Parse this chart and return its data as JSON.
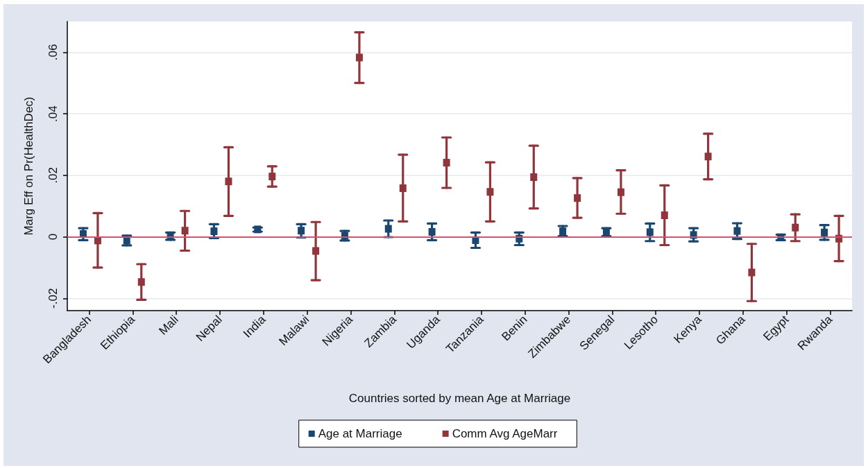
{
  "chart_data": {
    "type": "scatter",
    "xlabel": "Countries sorted by mean Age at Marriage",
    "ylabel": "Marg Eff on Pr(HealthDec)",
    "categories": [
      "Bangladesh",
      "Ethiopia",
      "Mali",
      "Nepal",
      "India",
      "Malawi",
      "Nigeria",
      "Zambia",
      "Uganda",
      "Tanzania",
      "Benin",
      "Zimbabwe",
      "Senegal",
      "Lesotho",
      "Kenya",
      "Ghana",
      "Egypt",
      "Rwanda"
    ],
    "series": [
      {
        "name": "Age at Marriage",
        "color": "#1a476f",
        "values": [
          0.0009,
          -0.0012,
          0.0002,
          0.0018,
          0.0024,
          0.002,
          0.0003,
          0.0026,
          0.0016,
          -0.0011,
          -0.0006,
          0.0018,
          0.0015,
          0.0015,
          0.0006,
          0.0019,
          -0.0002,
          0.0014
        ],
        "errors": [
          [
            -0.0011,
            0.0028
          ],
          [
            -0.0028,
            0.0004
          ],
          [
            -0.001,
            0.0014
          ],
          [
            -0.0004,
            0.0041
          ],
          [
            0.0017,
            0.003
          ],
          [
            -0.0002,
            0.0041
          ],
          [
            -0.0012,
            0.0019
          ],
          [
            -0.0001,
            0.0053
          ],
          [
            -0.0011,
            0.0043
          ],
          [
            -0.0036,
            0.0014
          ],
          [
            -0.0027,
            0.0014
          ],
          [
            0.0002,
            0.0035
          ],
          [
            0.0002,
            0.0028
          ],
          [
            -0.0014,
            0.0043
          ],
          [
            -0.0015,
            0.0028
          ],
          [
            -0.0007,
            0.0044
          ],
          [
            -0.0011,
            0.0007
          ],
          [
            -0.001,
            0.0038
          ]
        ]
      },
      {
        "name": "Comm Avg AgeMarr",
        "color": "#90353b",
        "values": [
          -0.0012,
          -0.0147,
          0.002,
          0.018,
          0.0196,
          -0.0046,
          0.0583,
          0.0158,
          0.0241,
          0.0146,
          0.0194,
          0.0126,
          0.0145,
          0.007,
          0.0261,
          -0.0116,
          0.003,
          -0.0006
        ],
        "errors": [
          [
            -0.01,
            0.0077
          ],
          [
            -0.0205,
            -0.0089
          ],
          [
            -0.0045,
            0.0084
          ],
          [
            0.0068,
            0.0291
          ],
          [
            0.0163,
            0.0229
          ],
          [
            -0.0141,
            0.0048
          ],
          [
            0.05,
            0.0665
          ],
          [
            0.005,
            0.0267
          ],
          [
            0.0159,
            0.0323
          ],
          [
            0.005,
            0.0242
          ],
          [
            0.0092,
            0.0296
          ],
          [
            0.0062,
            0.0191
          ],
          [
            0.0075,
            0.0216
          ],
          [
            -0.0027,
            0.0167
          ],
          [
            0.0187,
            0.0335
          ],
          [
            -0.0209,
            -0.0023
          ],
          [
            -0.0014,
            0.0073
          ],
          [
            -0.0079,
            0.0068
          ]
        ]
      }
    ],
    "ylim": [
      -0.024,
      0.07
    ],
    "yticks": [
      {
        "value": -0.02,
        "label": "-.02"
      },
      0,
      {
        "value": 0.02,
        "label": ".02"
      },
      {
        "value": 0.04,
        "label": ".04"
      },
      {
        "value": 0.06,
        "label": ".06"
      }
    ],
    "ref_lines": [
      {
        "axis": "y",
        "value": 0,
        "color": "#d4506e"
      }
    ],
    "grid": "y",
    "legend": "bottom",
    "marker": "square"
  }
}
